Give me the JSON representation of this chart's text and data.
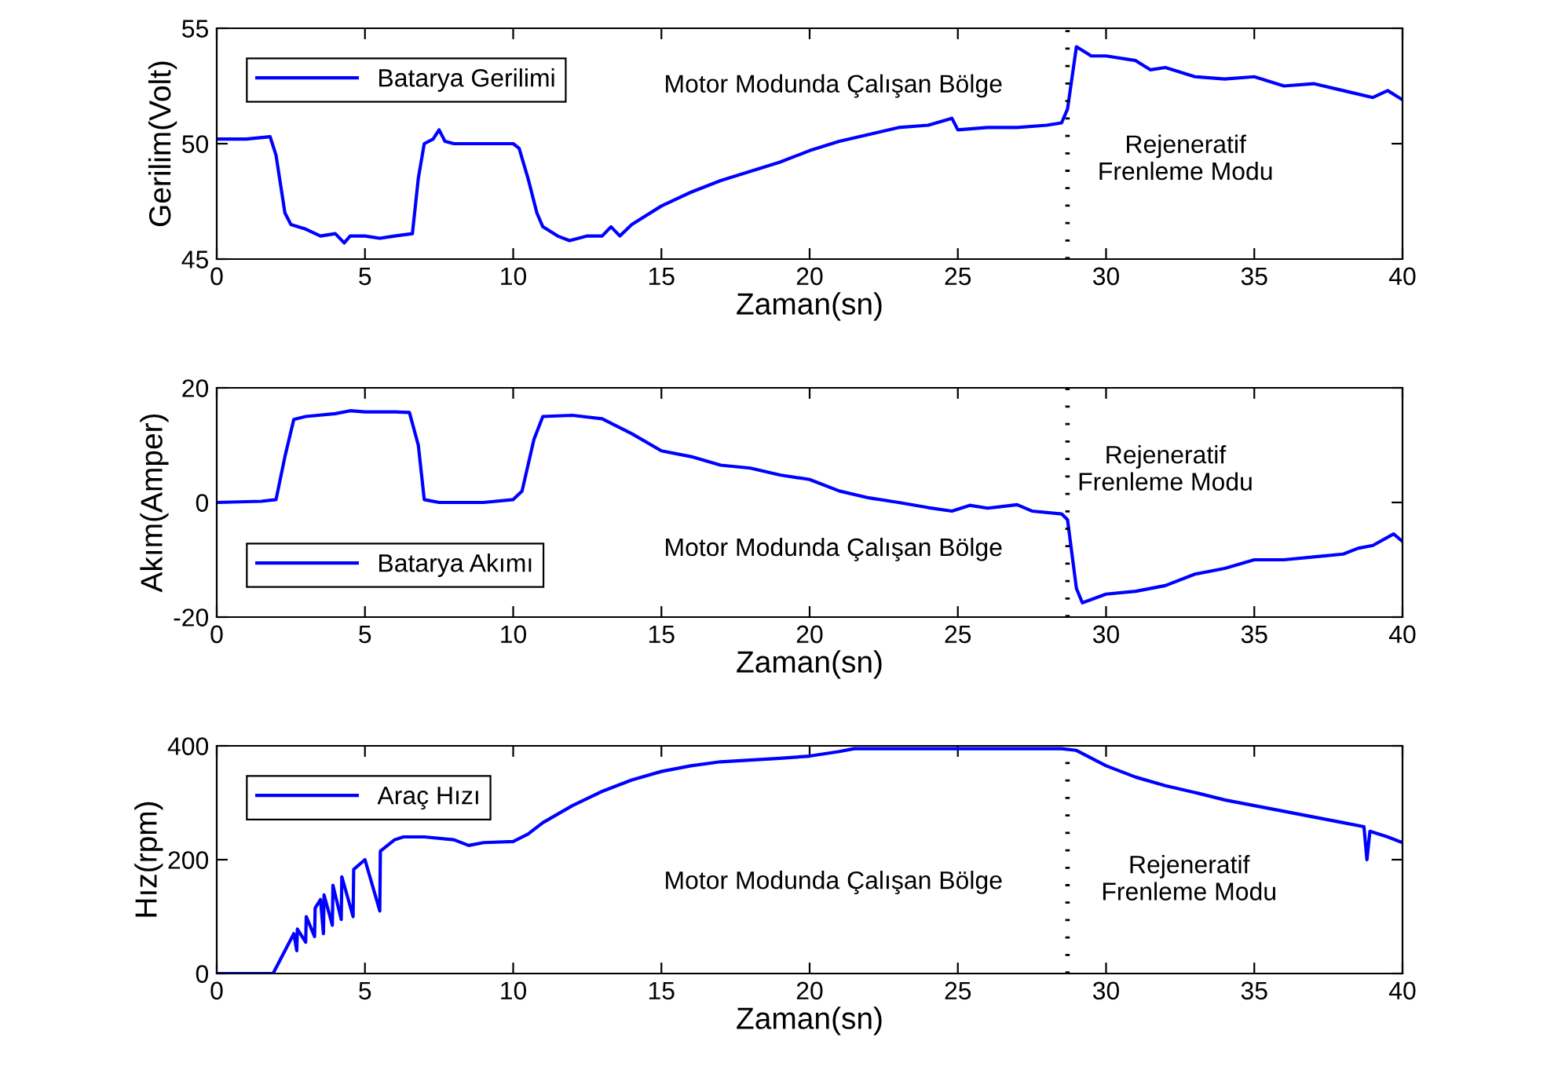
{
  "chart_data": [
    {
      "type": "line",
      "xlabel": "Zaman(sn)",
      "ylabel": "Gerilim(Volt)",
      "xlim": [
        0,
        40
      ],
      "ylim": [
        45,
        55
      ],
      "xticks": [
        0,
        5,
        10,
        15,
        20,
        25,
        30,
        35,
        40
      ],
      "yticks": [
        45,
        50,
        55
      ],
      "legend": "top left",
      "grid": false,
      "ref_lines": [
        {
          "axis": "x",
          "value": 28.7,
          "color": "#000000",
          "line_style": "dotted"
        }
      ],
      "annotations": [
        "Motor Modunda Çalışan Bölge",
        "Rejeneratif\nFrenleme Modu"
      ],
      "series": [
        {
          "name": "Batarya Gerilimi",
          "color": "#0000ff",
          "x": [
            0,
            1,
            1.8,
            2.0,
            2.3,
            2.5,
            3,
            3.5,
            4,
            4.3,
            4.5,
            5,
            5.5,
            6,
            6.6,
            6.8,
            7.0,
            7.3,
            7.5,
            7.7,
            8,
            9,
            10,
            10.2,
            10.5,
            10.8,
            11,
            11.5,
            11.9,
            12.5,
            13,
            13.3,
            13.6,
            14,
            15,
            16,
            17,
            18,
            19,
            20,
            21,
            22,
            23,
            24,
            24.8,
            25,
            26,
            27,
            28,
            28.5,
            28.7,
            29,
            29.5,
            30,
            31,
            31.5,
            32,
            33,
            34,
            35,
            36,
            37,
            38,
            39,
            39.5,
            40
          ],
          "values": [
            50.2,
            50.2,
            50.3,
            49.5,
            47,
            46.5,
            46.3,
            46.0,
            46.1,
            45.7,
            46.0,
            46.0,
            45.9,
            46.0,
            46.1,
            48.5,
            50.0,
            50.2,
            50.6,
            50.1,
            50.0,
            50.0,
            50.0,
            49.8,
            48.5,
            47,
            46.4,
            46.0,
            45.8,
            46.0,
            46.0,
            46.4,
            46.0,
            46.5,
            47.3,
            47.9,
            48.4,
            48.8,
            49.2,
            49.7,
            50.1,
            50.4,
            50.7,
            50.8,
            51.1,
            50.6,
            50.7,
            50.7,
            50.8,
            50.9,
            51.5,
            54.2,
            53.8,
            53.8,
            53.6,
            53.2,
            53.3,
            52.9,
            52.8,
            52.9,
            52.5,
            52.6,
            52.3,
            52.0,
            52.3,
            51.9
          ]
        }
      ]
    },
    {
      "type": "line",
      "xlabel": "Zaman(sn)",
      "ylabel": "Akım(Amper)",
      "xlim": [
        0,
        40
      ],
      "ylim": [
        -20,
        20
      ],
      "xticks": [
        0,
        5,
        10,
        15,
        20,
        25,
        30,
        35,
        40
      ],
      "yticks": [
        -20,
        0,
        20
      ],
      "legend": "bottom left",
      "grid": false,
      "ref_lines": [
        {
          "axis": "x",
          "value": 28.7,
          "color": "#000000",
          "line_style": "dotted"
        }
      ],
      "annotations": [
        "Motor Modunda Çalışan Bölge",
        "Rejeneratif\nFrenleme Modu"
      ],
      "series": [
        {
          "name": "Batarya Akımı",
          "color": "#0000ff",
          "x": [
            0,
            1.5,
            2,
            2.3,
            2.6,
            3,
            4,
            4.5,
            5,
            6,
            6.5,
            6.8,
            7.0,
            7.5,
            9,
            10,
            10.3,
            10.7,
            11,
            12,
            13,
            14,
            15,
            16,
            17,
            18,
            19,
            20,
            21,
            22,
            23,
            24,
            24.8,
            25.4,
            26,
            27,
            27.5,
            28.5,
            28.7,
            29,
            29.2,
            30,
            31,
            32,
            33,
            34,
            35,
            36,
            37,
            38,
            38.5,
            39,
            39.7,
            40
          ],
          "values": [
            0,
            0.2,
            0.5,
            8,
            14.5,
            15,
            15.5,
            16,
            15.8,
            15.8,
            15.7,
            10,
            0.5,
            0,
            0,
            0.5,
            2,
            11,
            15,
            15.2,
            14.6,
            12,
            9,
            8,
            6.5,
            6,
            4.8,
            4,
            2,
            0.8,
            0,
            -0.9,
            -1.5,
            -0.5,
            -1,
            -0.4,
            -1.5,
            -2,
            -3,
            -15,
            -17.5,
            -16,
            -15.5,
            -14.5,
            -12.5,
            -11.5,
            -10,
            -10,
            -9.5,
            -9,
            -8,
            -7.5,
            -5.5,
            -6.8
          ]
        }
      ]
    },
    {
      "type": "line",
      "xlabel": "Zaman(sn)",
      "ylabel": "Hız(rpm)",
      "xlim": [
        0,
        40
      ],
      "ylim": [
        0,
        400
      ],
      "xticks": [
        0,
        5,
        10,
        15,
        20,
        25,
        30,
        35,
        40
      ],
      "yticks": [
        0,
        200,
        400
      ],
      "legend": "top left",
      "grid": false,
      "ref_lines": [
        {
          "axis": "x",
          "value": 28.7,
          "color": "#000000",
          "line_style": "dotted"
        }
      ],
      "annotations": [
        "Motor Modunda Çalışan Bölge",
        "Rejeneratif\nFrenleme Modu"
      ],
      "series": [
        {
          "name": "Araç Hızı",
          "color": "#0000ff",
          "x": [
            0,
            1.9,
            2.2,
            2.6,
            2.7,
            2.72,
            3.0,
            3.02,
            3.3,
            3.32,
            3.5,
            3.6,
            3.62,
            3.9,
            3.92,
            4.2,
            4.22,
            4.6,
            4.62,
            5,
            5.5,
            5.52,
            6,
            6.3,
            7,
            8,
            8.5,
            9,
            10,
            10.5,
            11,
            12,
            13,
            14,
            15,
            16,
            17,
            18,
            19,
            20,
            21,
            21.5,
            25,
            28.5,
            29,
            30,
            31,
            32,
            33,
            34,
            35,
            36,
            37,
            38,
            38.7,
            38.8,
            38.9,
            39.5,
            40
          ],
          "values": [
            0,
            0,
            30,
            70,
            40,
            78,
            55,
            100,
            65,
            115,
            130,
            70,
            138,
            85,
            155,
            95,
            170,
            100,
            183,
            200,
            110,
            215,
            235,
            240,
            240,
            235,
            225,
            230,
            232,
            245,
            265,
            295,
            320,
            340,
            355,
            365,
            372,
            375,
            378,
            382,
            390,
            395,
            395,
            395,
            392,
            365,
            345,
            330,
            318,
            305,
            295,
            285,
            275,
            265,
            258,
            200,
            250,
            240,
            230
          ]
        }
      ]
    }
  ]
}
